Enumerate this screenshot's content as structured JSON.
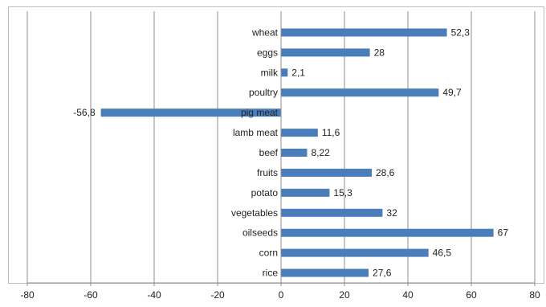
{
  "chart_data": {
    "type": "bar",
    "orientation": "horizontal",
    "categories": [
      "wheat",
      "eggs",
      "milk",
      "poultry",
      "pig meat",
      "lamb meat",
      "beef",
      "fruits",
      "potato",
      "vegetables",
      "oilseeds",
      "corn",
      "rice"
    ],
    "values": [
      52.3,
      28,
      2.1,
      49.7,
      -56.8,
      11.6,
      8.22,
      28.6,
      15.3,
      32,
      67,
      46.5,
      27.6
    ],
    "value_labels": [
      "52,3",
      "28",
      "2,1",
      "49,7",
      "-56,8",
      "11,6",
      "8,22",
      "28,6",
      "15,3",
      "32",
      "67",
      "46,5",
      "27,6"
    ],
    "xlim": [
      -80,
      80
    ],
    "x_ticks": [
      -80,
      -60,
      -40,
      -20,
      0,
      20,
      40,
      60,
      80
    ],
    "x_tick_labels": [
      "-80",
      "-60",
      "-40",
      "-20",
      "0",
      "20",
      "40",
      "60",
      "80"
    ],
    "grid": "vertical",
    "legend": "none",
    "title": "",
    "xlabel": "",
    "ylabel": "",
    "colors": {
      "bar": "#4a7ebb",
      "grid": "#8c8c8c",
      "axis": "#8c8c8c",
      "text": "#222222"
    }
  }
}
